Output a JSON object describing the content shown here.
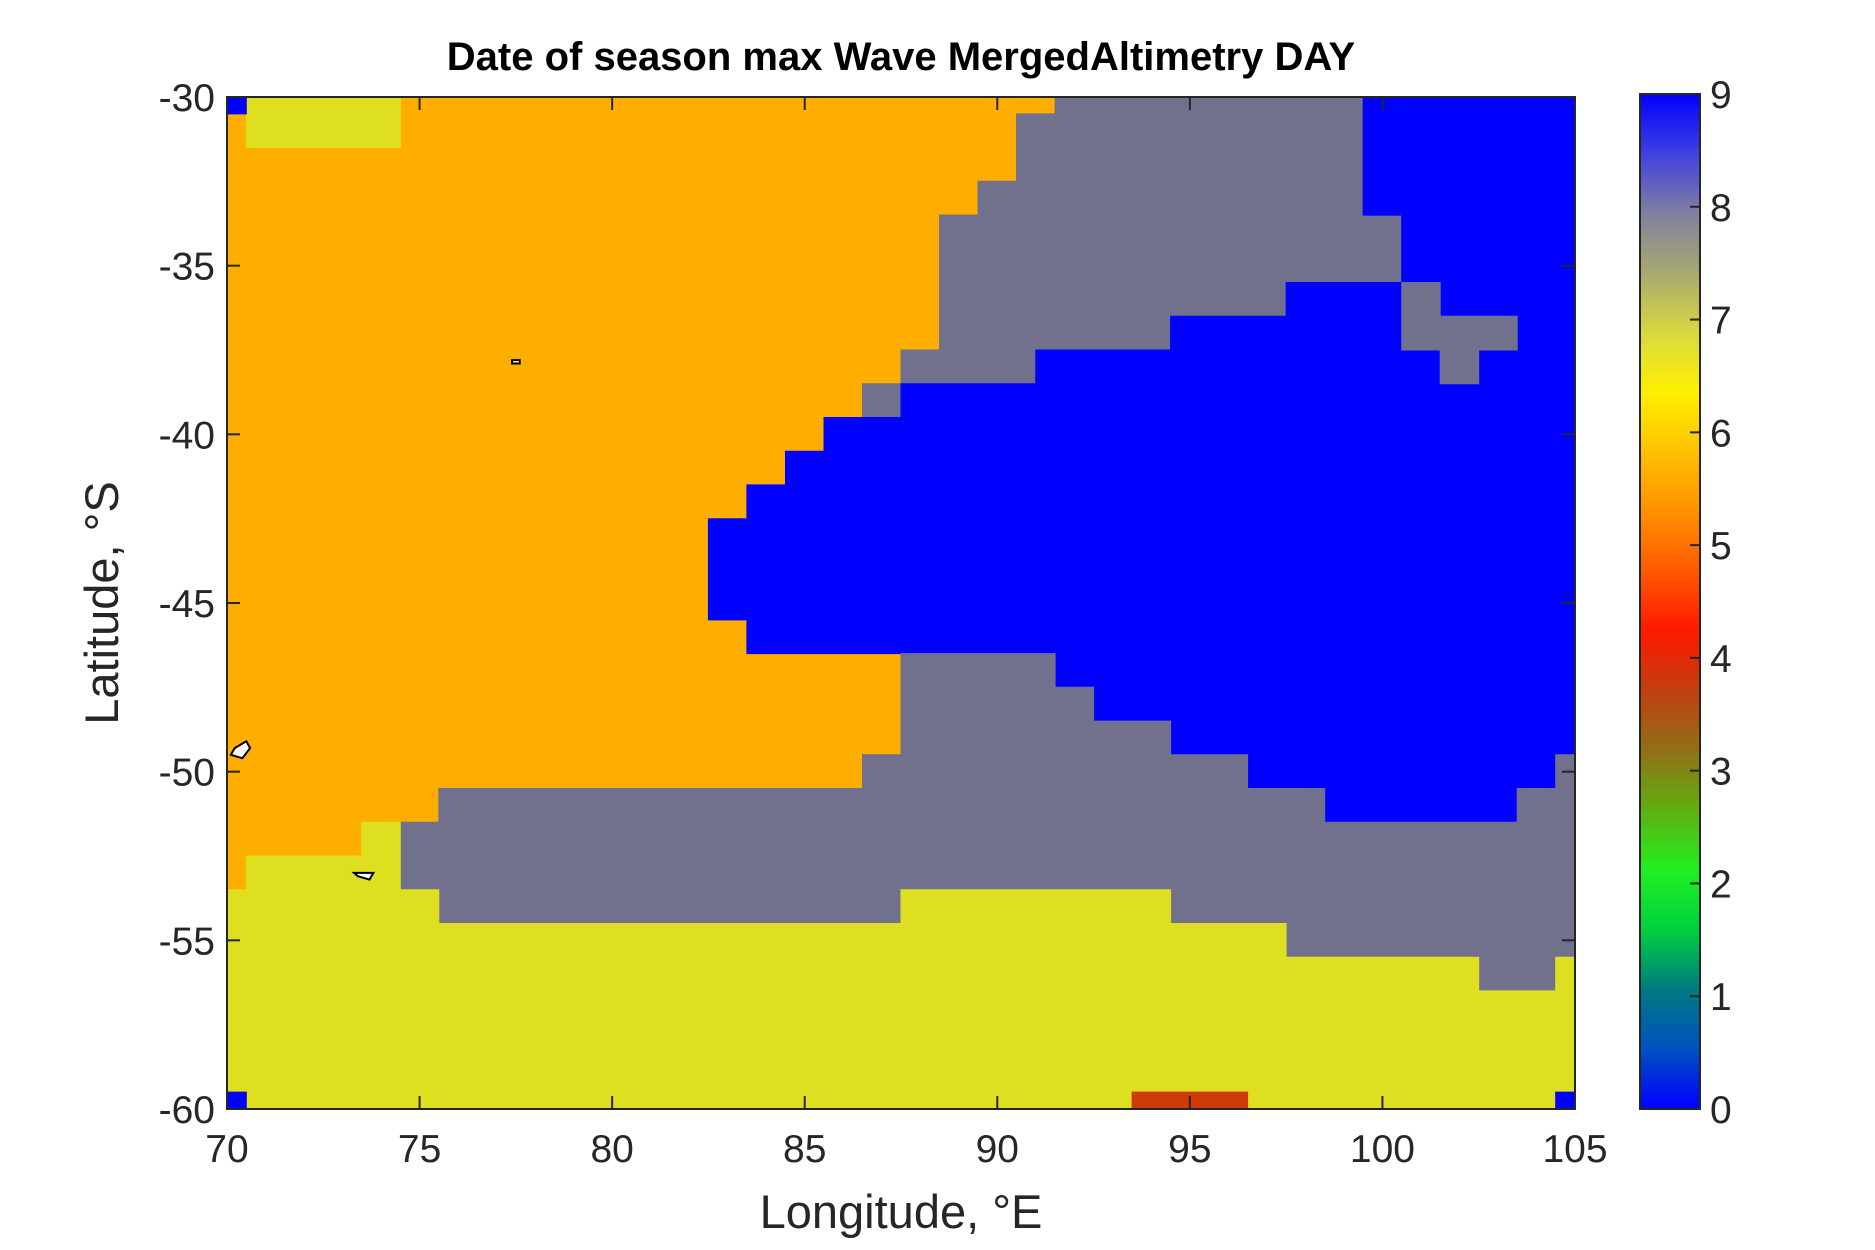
{
  "chart_data": {
    "type": "heatmap",
    "title": "Date of season max Wave MergedAltimetry DAY",
    "xlabel": "Longitude, °E",
    "ylabel": "Latitude, °S",
    "xlim": [
      70,
      105
    ],
    "ylim": [
      -60,
      -30
    ],
    "x_ticks": [
      "70",
      "75",
      "80",
      "85",
      "90",
      "95",
      "100",
      "105"
    ],
    "y_ticks": [
      "-30",
      "-35",
      "-40",
      "-45",
      "-50",
      "-55",
      "-60"
    ],
    "colorbar": {
      "range": [
        0,
        9
      ],
      "ticks": [
        "0",
        "1",
        "2",
        "3",
        "4",
        "5",
        "6",
        "7",
        "8",
        "9"
      ],
      "colormap": [
        "#0000ff",
        "#0050c0",
        "#007a80",
        "#00d040",
        "#20f020",
        "#5fb010",
        "#907018",
        "#c04010",
        "#ff1800",
        "#ff5800",
        "#ff9000",
        "#ffc000",
        "#fff000",
        "#d8d840",
        "#a8a870",
        "#8080a0",
        "#4040e0",
        "#0000ff"
      ]
    },
    "grid": false,
    "legend": "colorbar-right",
    "regions": [
      {
        "value": 6,
        "label": "6",
        "color": "#ffae00",
        "polygon": [
          [
            70,
            -30
          ],
          [
            91.5,
            -30
          ],
          [
            91.5,
            -30.5
          ],
          [
            90.5,
            -30.5
          ],
          [
            90.5,
            -32.5
          ],
          [
            89.5,
            -32.5
          ],
          [
            89.5,
            -33.5
          ],
          [
            88.5,
            -33.5
          ],
          [
            88.5,
            -37.5
          ],
          [
            87.5,
            -37.5
          ],
          [
            87.5,
            -38.5
          ],
          [
            86.5,
            -38.5
          ],
          [
            86.5,
            -39.5
          ],
          [
            85.5,
            -39.5
          ],
          [
            85.5,
            -40.5
          ],
          [
            84.5,
            -40.5
          ],
          [
            84.5,
            -41.5
          ],
          [
            83.5,
            -41.5
          ],
          [
            83.5,
            -42.5
          ],
          [
            82.5,
            -42.5
          ],
          [
            82.5,
            -45.5
          ],
          [
            83.5,
            -45.5
          ],
          [
            83.5,
            -46.5
          ],
          [
            87.5,
            -46.5
          ],
          [
            87.5,
            -49.5
          ],
          [
            86.5,
            -49.5
          ],
          [
            86.5,
            -50.5
          ],
          [
            75.5,
            -50.5
          ],
          [
            75.5,
            -51.5
          ],
          [
            74.5,
            -51.5
          ],
          [
            74.5,
            -52.5
          ],
          [
            73.5,
            -52.5
          ],
          [
            73.5,
            -51.5
          ],
          [
            73.5,
            -52.5
          ],
          [
            70.5,
            -52.5
          ],
          [
            70.5,
            -53.5
          ],
          [
            70,
            -53.5
          ]
        ]
      },
      {
        "value": 7.2,
        "label": "7",
        "color": "#dfdf21",
        "polygon": [
          [
            70.5,
            -30
          ],
          [
            74.5,
            -30
          ],
          [
            74.5,
            -31.5
          ],
          [
            70.5,
            -31.5
          ]
        ]
      },
      {
        "value": 8,
        "label": "8",
        "color": "#71718e",
        "polygon": [
          [
            91.5,
            -30
          ],
          [
            99.5,
            -30
          ],
          [
            99.5,
            -33.5
          ],
          [
            100.5,
            -33.5
          ],
          [
            100.5,
            -35.5
          ],
          [
            97.5,
            -35.5
          ],
          [
            97.5,
            -36.5
          ],
          [
            94.5,
            -36.5
          ],
          [
            94.5,
            -37.5
          ],
          [
            91,
            -37.5
          ],
          [
            91,
            -38.5
          ],
          [
            87.5,
            -38.5
          ],
          [
            87.5,
            -39.5
          ],
          [
            86.5,
            -39.5
          ],
          [
            86.5,
            -38.5
          ],
          [
            87.5,
            -38.5
          ],
          [
            87.5,
            -37.5
          ],
          [
            88.5,
            -37.5
          ],
          [
            88.5,
            -33.5
          ],
          [
            89.5,
            -33.5
          ],
          [
            89.5,
            -32.5
          ],
          [
            90.5,
            -32.5
          ],
          [
            90.5,
            -30.5
          ],
          [
            91.5,
            -30.5
          ]
        ]
      },
      {
        "value": 9,
        "label": "9",
        "color": "#0000ff",
        "polygon": [
          [
            99.5,
            -30
          ],
          [
            105,
            -30
          ],
          [
            105,
            -49.5
          ],
          [
            104.5,
            -49.5
          ],
          [
            104.5,
            -50.5
          ],
          [
            103.5,
            -50.5
          ],
          [
            103.5,
            -51.5
          ],
          [
            98.5,
            -51.5
          ],
          [
            98.5,
            -50.5
          ],
          [
            96.5,
            -50.5
          ],
          [
            96.5,
            -49.5
          ],
          [
            94.5,
            -49.5
          ],
          [
            94.5,
            -48.5
          ],
          [
            92.5,
            -48.5
          ],
          [
            92.5,
            -47.5
          ],
          [
            91.5,
            -47.5
          ],
          [
            91.5,
            -46.5
          ],
          [
            83.5,
            -46.5
          ],
          [
            83.5,
            -45.5
          ],
          [
            82.5,
            -45.5
          ],
          [
            82.5,
            -42.5
          ],
          [
            83.5,
            -42.5
          ],
          [
            83.5,
            -41.5
          ],
          [
            84.5,
            -41.5
          ],
          [
            84.5,
            -40.5
          ],
          [
            85.5,
            -40.5
          ],
          [
            85.5,
            -39.5
          ],
          [
            87.5,
            -39.5
          ],
          [
            87.5,
            -38.5
          ],
          [
            91,
            -38.5
          ],
          [
            91,
            -37.5
          ],
          [
            94.5,
            -37.5
          ],
          [
            94.5,
            -36.5
          ],
          [
            97.5,
            -36.5
          ],
          [
            97.5,
            -35.5
          ],
          [
            100.5,
            -35.5
          ],
          [
            100.5,
            -33.5
          ],
          [
            99.5,
            -33.5
          ]
        ]
      },
      {
        "value": 8,
        "label": "8",
        "color": "#71718e",
        "polygon": [
          [
            100.5,
            -35.5
          ],
          [
            101.5,
            -35.5
          ],
          [
            101.5,
            -36.5
          ],
          [
            103.5,
            -36.5
          ],
          [
            103.5,
            -37.5
          ],
          [
            102.5,
            -37.5
          ],
          [
            102.5,
            -38.5
          ],
          [
            101.5,
            -38.5
          ],
          [
            101.5,
            -37.5
          ],
          [
            100.5,
            -37.5
          ]
        ]
      },
      {
        "value": 8,
        "label": "8",
        "color": "#71718e",
        "polygon": [
          [
            87.5,
            -46.5
          ],
          [
            91.5,
            -46.5
          ],
          [
            91.5,
            -47.5
          ],
          [
            92.5,
            -47.5
          ],
          [
            92.5,
            -48.5
          ],
          [
            94.5,
            -48.5
          ],
          [
            94.5,
            -49.5
          ],
          [
            96.5,
            -49.5
          ],
          [
            96.5,
            -50.5
          ],
          [
            98.5,
            -50.5
          ],
          [
            98.5,
            -51.5
          ],
          [
            103.5,
            -51.5
          ],
          [
            103.5,
            -50.5
          ],
          [
            104.5,
            -50.5
          ],
          [
            104.5,
            -49.5
          ],
          [
            105,
            -49.5
          ],
          [
            105,
            -55.5
          ],
          [
            104.5,
            -55.5
          ],
          [
            104.5,
            -56.5
          ],
          [
            102.5,
            -56.5
          ],
          [
            102.5,
            -55.5
          ],
          [
            97.5,
            -55.5
          ],
          [
            97.5,
            -54.5
          ],
          [
            94.5,
            -54.5
          ],
          [
            94.5,
            -53.5
          ],
          [
            87.5,
            -53.5
          ],
          [
            87.5,
            -54.5
          ],
          [
            75.5,
            -54.5
          ],
          [
            75.5,
            -53.5
          ],
          [
            74.5,
            -53.5
          ],
          [
            74.5,
            -51.5
          ],
          [
            75.5,
            -51.5
          ],
          [
            75.5,
            -50.5
          ],
          [
            86.5,
            -50.5
          ],
          [
            86.5,
            -49.5
          ],
          [
            87.5,
            -49.5
          ]
        ]
      },
      {
        "value": 7.2,
        "label": "7",
        "color": "#dfdf21",
        "polygon": [
          [
            70,
            -53.5
          ],
          [
            70.5,
            -53.5
          ],
          [
            70.5,
            -52.5
          ],
          [
            73.5,
            -52.5
          ],
          [
            73.5,
            -51.5
          ],
          [
            74.5,
            -51.5
          ],
          [
            74.5,
            -53.5
          ],
          [
            75.5,
            -53.5
          ],
          [
            75.5,
            -54.5
          ],
          [
            87.5,
            -54.5
          ],
          [
            87.5,
            -53.5
          ],
          [
            94.5,
            -53.5
          ],
          [
            94.5,
            -54.5
          ],
          [
            97.5,
            -54.5
          ],
          [
            97.5,
            -55.5
          ],
          [
            102.5,
            -55.5
          ],
          [
            102.5,
            -56.5
          ],
          [
            104.5,
            -56.5
          ],
          [
            104.5,
            -55.5
          ],
          [
            105,
            -55.5
          ],
          [
            105,
            -60
          ],
          [
            70,
            -60
          ]
        ]
      },
      {
        "value": 4.4,
        "label": "4",
        "color": "#ce3a08",
        "polygon": [
          [
            93.5,
            -59.5
          ],
          [
            96.5,
            -59.5
          ],
          [
            96.5,
            -60
          ],
          [
            93.5,
            -60
          ]
        ]
      },
      {
        "value": 9,
        "label": "9",
        "color": "#0000ff",
        "polygon": [
          [
            70,
            -30
          ],
          [
            70.5,
            -30
          ],
          [
            70.5,
            -30.5
          ],
          [
            70,
            -30.5
          ]
        ]
      },
      {
        "value": 9,
        "label": "9",
        "color": "#0000ff",
        "polygon": [
          [
            70,
            -59.5
          ],
          [
            70.5,
            -59.5
          ],
          [
            70.5,
            -60
          ],
          [
            70,
            -60
          ]
        ]
      },
      {
        "value": 9,
        "label": "9",
        "color": "#0000ff",
        "polygon": [
          [
            104.5,
            -59.5
          ],
          [
            105,
            -59.5
          ],
          [
            105,
            -60
          ],
          [
            104.5,
            -60
          ]
        ]
      }
    ],
    "coastlines": [
      {
        "name": "island",
        "points": [
          [
            70.2,
            -49.3
          ],
          [
            70.5,
            -49.1
          ],
          [
            70.6,
            -49.3
          ],
          [
            70.4,
            -49.6
          ],
          [
            70.1,
            -49.5
          ]
        ]
      },
      {
        "name": "island",
        "points": [
          [
            73.3,
            -53.0
          ],
          [
            73.8,
            -53.0
          ],
          [
            73.7,
            -53.2
          ],
          [
            73.4,
            -53.1
          ]
        ]
      },
      {
        "name": "islet",
        "points": [
          [
            77.4,
            -37.8
          ],
          [
            77.6,
            -37.8
          ],
          [
            77.6,
            -37.9
          ],
          [
            77.4,
            -37.9
          ]
        ]
      }
    ]
  }
}
